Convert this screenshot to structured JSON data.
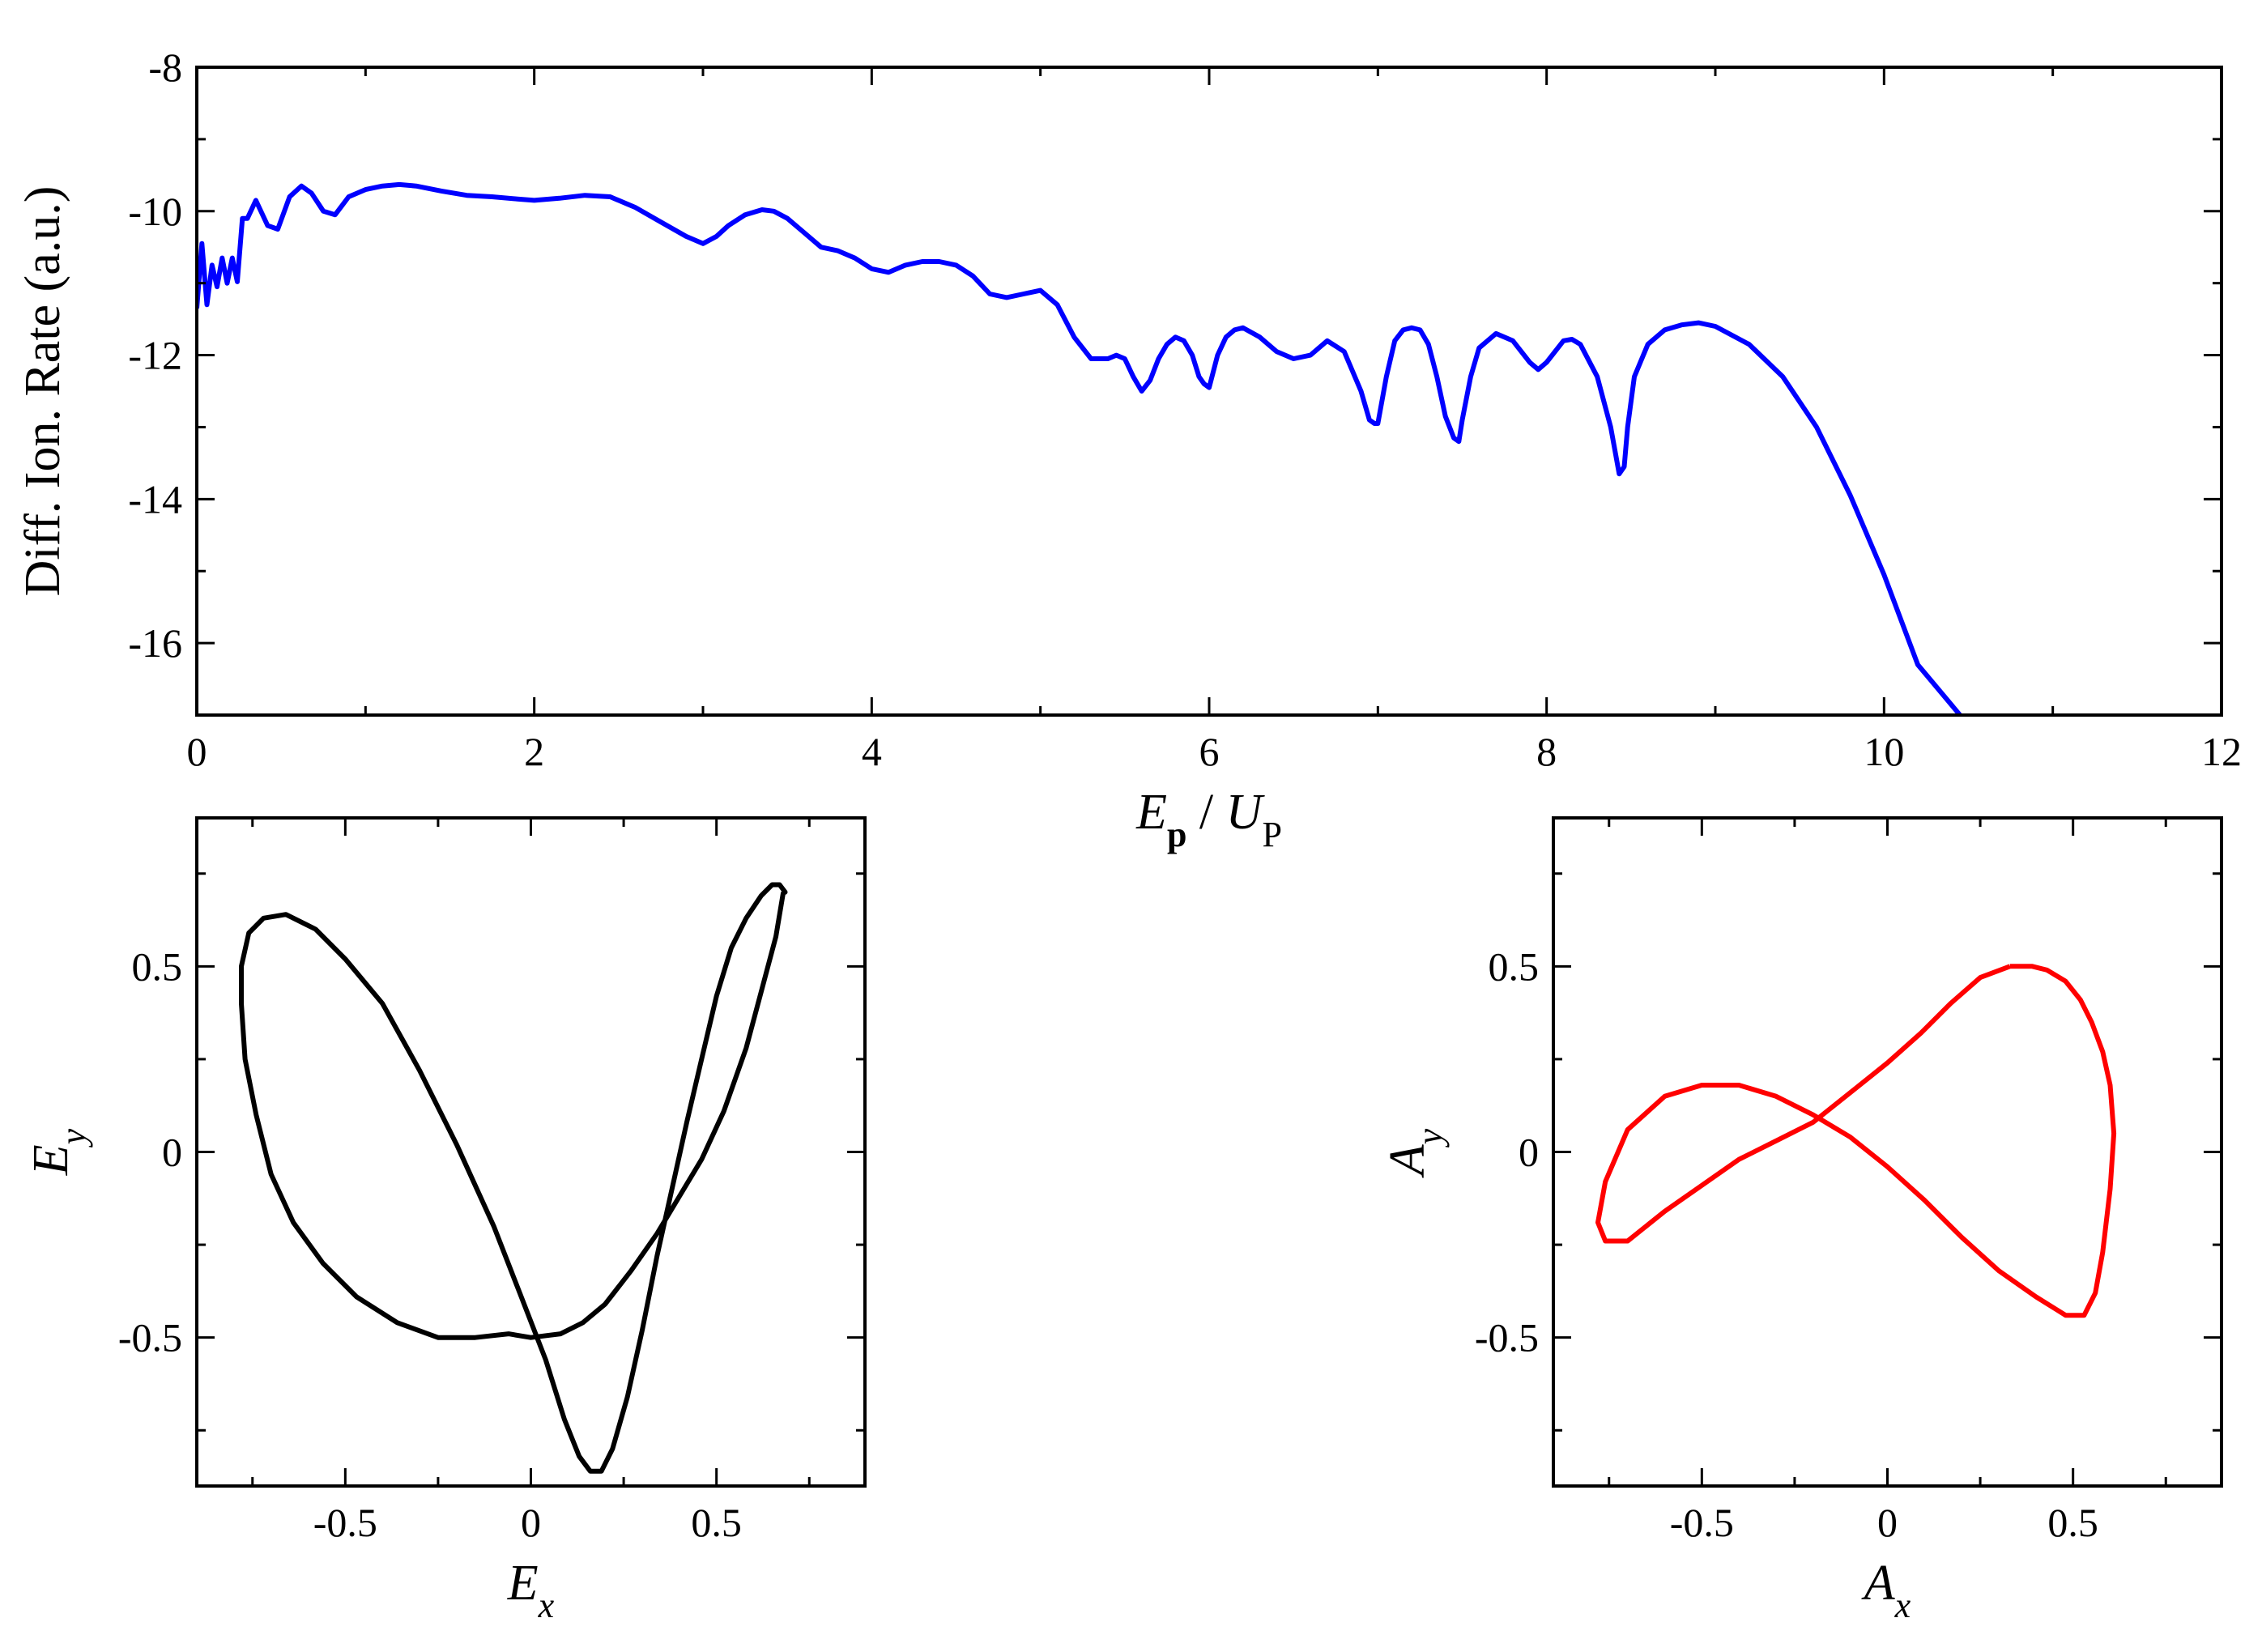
{
  "chart_data": [
    {
      "type": "line",
      "title": "",
      "ylabel": "Diff. Ion. Rate (a.u.)",
      "xlabel": {
        "main": "E",
        "sub": "p",
        "mid": " / ",
        "main2": "U",
        "sub2": "P"
      },
      "xlim": [
        0,
        12
      ],
      "ylim": [
        -17,
        -8
      ],
      "xticks": [
        0,
        2,
        4,
        6,
        8,
        10,
        12
      ],
      "yticks": [
        -16,
        -14,
        -12,
        -10,
        -8
      ],
      "xticks_minor": [
        1,
        3,
        5,
        7,
        9,
        11
      ],
      "yticks_minor": [
        -17,
        -15,
        -13,
        -11,
        -9
      ],
      "grid": false,
      "series": [
        {
          "color": "#0000ff",
          "x": [
            0.0,
            0.03,
            0.06,
            0.09,
            0.12,
            0.15,
            0.18,
            0.21,
            0.24,
            0.27,
            0.3,
            0.35,
            0.42,
            0.48,
            0.55,
            0.62,
            0.68,
            0.75,
            0.82,
            0.9,
            1.0,
            1.1,
            1.2,
            1.3,
            1.45,
            1.6,
            1.75,
            1.9,
            2.0,
            2.15,
            2.3,
            2.45,
            2.6,
            2.75,
            2.9,
            3.0,
            3.08,
            3.15,
            3.25,
            3.35,
            3.42,
            3.5,
            3.6,
            3.7,
            3.8,
            3.9,
            4.0,
            4.1,
            4.2,
            4.3,
            4.4,
            4.5,
            4.6,
            4.7,
            4.8,
            4.9,
            5.0,
            5.1,
            5.2,
            5.3,
            5.35,
            5.4,
            5.45,
            5.5,
            5.55,
            5.6,
            5.65,
            5.7,
            5.75,
            5.8,
            5.85,
            5.9,
            5.94,
            5.97,
            6.0,
            6.05,
            6.1,
            6.15,
            6.2,
            6.3,
            6.4,
            6.5,
            6.6,
            6.7,
            6.8,
            6.9,
            6.95,
            6.98,
            7.0,
            7.05,
            7.1,
            7.15,
            7.2,
            7.25,
            7.3,
            7.35,
            7.4,
            7.45,
            7.48,
            7.5,
            7.55,
            7.6,
            7.7,
            7.8,
            7.9,
            7.95,
            8.0,
            8.1,
            8.15,
            8.2,
            8.3,
            8.38,
            8.43,
            8.46,
            8.48,
            8.52,
            8.6,
            8.7,
            8.8,
            8.9,
            9.0,
            9.2,
            9.4,
            9.6,
            9.8,
            10.0,
            10.2,
            10.45
          ],
          "y": [
            -11.35,
            -10.45,
            -11.3,
            -10.75,
            -11.05,
            -10.65,
            -11.0,
            -10.65,
            -10.98,
            -10.1,
            -10.1,
            -9.85,
            -10.2,
            -10.25,
            -9.8,
            -9.65,
            -9.75,
            -10.0,
            -10.05,
            -9.8,
            -9.7,
            -9.65,
            -9.63,
            -9.65,
            -9.72,
            -9.78,
            -9.8,
            -9.83,
            -9.85,
            -9.82,
            -9.78,
            -9.8,
            -9.95,
            -10.15,
            -10.35,
            -10.45,
            -10.35,
            -10.2,
            -10.05,
            -9.98,
            -10.0,
            -10.1,
            -10.3,
            -10.5,
            -10.55,
            -10.65,
            -10.8,
            -10.85,
            -10.75,
            -10.7,
            -10.7,
            -10.75,
            -10.9,
            -11.15,
            -11.2,
            -11.15,
            -11.1,
            -11.3,
            -11.75,
            -12.05,
            -12.05,
            -12.05,
            -12.0,
            -12.05,
            -12.3,
            -12.5,
            -12.35,
            -12.05,
            -11.85,
            -11.75,
            -11.8,
            -12.0,
            -12.3,
            -12.4,
            -12.45,
            -12.0,
            -11.75,
            -11.65,
            -11.62,
            -11.75,
            -11.95,
            -12.05,
            -12.0,
            -11.8,
            -11.95,
            -12.5,
            -12.9,
            -12.95,
            -12.95,
            -12.3,
            -11.8,
            -11.65,
            -11.62,
            -11.65,
            -11.85,
            -12.3,
            -12.85,
            -13.15,
            -13.2,
            -12.9,
            -12.3,
            -11.9,
            -11.7,
            -11.8,
            -12.1,
            -12.2,
            -12.1,
            -11.8,
            -11.78,
            -11.85,
            -12.3,
            -13.0,
            -13.65,
            -13.55,
            -13.0,
            -12.3,
            -11.85,
            -11.65,
            -11.58,
            -11.55,
            -11.6,
            -11.85,
            -12.3,
            -13.0,
            -13.95,
            -15.05,
            -16.3,
            -17.0
          ]
        }
      ]
    },
    {
      "type": "line",
      "title": "",
      "xlabel": {
        "main": "E",
        "sub": "x"
      },
      "ylabel": {
        "main": "E",
        "sub": "y"
      },
      "xlim": [
        -0.9,
        0.9
      ],
      "ylim": [
        -0.9,
        0.9
      ],
      "xticks": [
        -0.5,
        0,
        0.5
      ],
      "yticks": [
        -0.5,
        0,
        0.5
      ],
      "xticks_minor": [
        -0.75,
        -0.25,
        0.25,
        0.75
      ],
      "yticks_minor": [
        -0.75,
        -0.25,
        0.25,
        0.75
      ],
      "grid": false,
      "series": [
        {
          "color": "#000000",
          "x": [
            0.68,
            0.66,
            0.62,
            0.58,
            0.52,
            0.46,
            0.4,
            0.34,
            0.27,
            0.2,
            0.14,
            0.08,
            0.0,
            -0.06,
            -0.15,
            -0.25,
            -0.36,
            -0.47,
            -0.56,
            -0.64,
            -0.7,
            -0.74,
            -0.77,
            -0.78,
            -0.78,
            -0.76,
            -0.72,
            -0.66,
            -0.58,
            -0.5,
            -0.4,
            -0.3,
            -0.2,
            -0.1,
            -0.03,
            0.04,
            0.09,
            0.13,
            0.16,
            0.19,
            0.22,
            0.26,
            0.3,
            0.34,
            0.38,
            0.42,
            0.46,
            0.5,
            0.54,
            0.58,
            0.62,
            0.65,
            0.67,
            0.685,
            0.68
          ],
          "y": [
            0.7,
            0.58,
            0.43,
            0.28,
            0.11,
            -0.02,
            -0.12,
            -0.22,
            -0.32,
            -0.41,
            -0.46,
            -0.49,
            -0.5,
            -0.49,
            -0.5,
            -0.5,
            -0.46,
            -0.39,
            -0.3,
            -0.19,
            -0.06,
            0.1,
            0.25,
            0.4,
            0.5,
            0.59,
            0.63,
            0.64,
            0.6,
            0.52,
            0.4,
            0.22,
            0.02,
            -0.2,
            -0.38,
            -0.56,
            -0.72,
            -0.82,
            -0.86,
            -0.86,
            -0.8,
            -0.66,
            -0.48,
            -0.28,
            -0.1,
            0.08,
            0.25,
            0.42,
            0.55,
            0.63,
            0.69,
            0.72,
            0.72,
            0.7,
            0.7
          ]
        }
      ]
    },
    {
      "type": "line",
      "title": "",
      "xlabel": {
        "main": "A",
        "sub": "x"
      },
      "ylabel": {
        "main": "A",
        "sub": "y"
      },
      "xlim": [
        -0.9,
        0.9
      ],
      "ylim": [
        -0.9,
        0.9
      ],
      "xticks": [
        -0.5,
        0,
        0.5
      ],
      "yticks": [
        -0.5,
        0,
        0.5
      ],
      "xticks_minor": [
        -0.75,
        -0.25,
        0.25,
        0.75
      ],
      "yticks_minor": [
        -0.75,
        -0.25,
        0.25,
        0.75
      ],
      "grid": false,
      "series": [
        {
          "color": "#ff0000",
          "x": [
            0.33,
            0.25,
            0.17,
            0.09,
            0.0,
            -0.1,
            -0.2,
            -0.3,
            -0.4,
            -0.5,
            -0.6,
            -0.7,
            -0.76,
            -0.78,
            -0.76,
            -0.7,
            -0.6,
            -0.5,
            -0.4,
            -0.3,
            -0.2,
            -0.1,
            0.0,
            0.1,
            0.2,
            0.3,
            0.4,
            0.48,
            0.53,
            0.56,
            0.58,
            0.6,
            0.61,
            0.6,
            0.58,
            0.55,
            0.52,
            0.48,
            0.43,
            0.39,
            0.33
          ],
          "y": [
            0.5,
            0.47,
            0.4,
            0.32,
            0.24,
            0.16,
            0.08,
            0.03,
            -0.02,
            -0.09,
            -0.16,
            -0.24,
            -0.24,
            -0.19,
            -0.08,
            0.06,
            0.15,
            0.18,
            0.18,
            0.15,
            0.1,
            0.04,
            -0.04,
            -0.13,
            -0.23,
            -0.32,
            -0.39,
            -0.44,
            -0.44,
            -0.38,
            -0.27,
            -0.1,
            0.05,
            0.18,
            0.27,
            0.35,
            0.41,
            0.46,
            0.49,
            0.5,
            0.5
          ]
        }
      ]
    }
  ]
}
